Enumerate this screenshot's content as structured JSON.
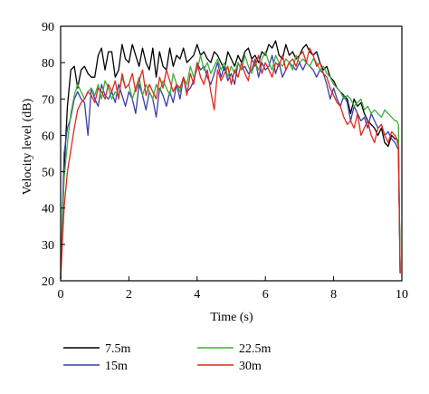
{
  "chart_data": {
    "type": "line",
    "title": "",
    "xlabel": "Time (s)",
    "ylabel": "Velocity level (dB)",
    "xlim": [
      0,
      10
    ],
    "ylim": [
      20,
      90
    ],
    "xticks": [
      0,
      2,
      4,
      6,
      8,
      10
    ],
    "yticks": [
      20,
      30,
      40,
      50,
      60,
      70,
      80,
      90
    ],
    "grid": false,
    "legend_position": "bottom",
    "series": [
      {
        "name": "7.5m",
        "color": "#000000",
        "x": [
          0.0,
          0.1,
          0.2,
          0.3,
          0.4,
          0.5,
          0.6,
          0.7,
          0.8,
          0.9,
          1.0,
          1.1,
          1.2,
          1.3,
          1.4,
          1.5,
          1.6,
          1.7,
          1.8,
          1.9,
          2.0,
          2.1,
          2.2,
          2.3,
          2.4,
          2.5,
          2.6,
          2.7,
          2.8,
          2.9,
          3.0,
          3.1,
          3.2,
          3.3,
          3.4,
          3.5,
          3.6,
          3.7,
          3.8,
          3.9,
          4.0,
          4.1,
          4.2,
          4.3,
          4.4,
          4.5,
          4.6,
          4.7,
          4.8,
          4.9,
          5.0,
          5.1,
          5.2,
          5.3,
          5.4,
          5.5,
          5.6,
          5.7,
          5.8,
          5.9,
          6.0,
          6.1,
          6.2,
          6.3,
          6.4,
          6.5,
          6.6,
          6.7,
          6.8,
          6.9,
          7.0,
          7.1,
          7.2,
          7.3,
          7.4,
          7.5,
          7.6,
          7.7,
          7.8,
          7.9,
          8.0,
          8.1,
          8.2,
          8.3,
          8.4,
          8.5,
          8.6,
          8.7,
          8.8,
          8.9,
          9.0,
          9.1,
          9.2,
          9.3,
          9.4,
          9.5,
          9.6,
          9.7,
          9.8,
          9.85,
          9.9,
          9.95
        ],
        "y": [
          20.5,
          50,
          68,
          78,
          79,
          73,
          78,
          79,
          77,
          76,
          76,
          82,
          84,
          78,
          83,
          83,
          76,
          78,
          85,
          81,
          80,
          85,
          82,
          79,
          84,
          80,
          78,
          84,
          76,
          83,
          79,
          78,
          84,
          79,
          82,
          81,
          84,
          80,
          81,
          82,
          85,
          82,
          83,
          81,
          80,
          83,
          82,
          80,
          78,
          83,
          81,
          79,
          82,
          80,
          83,
          84,
          81,
          82,
          80,
          83,
          82,
          85,
          84,
          86,
          82,
          81,
          85,
          82,
          83,
          81,
          82,
          84,
          85,
          83,
          82,
          83,
          80,
          78,
          79,
          76,
          75,
          73,
          72,
          71,
          70,
          66,
          70,
          68,
          69,
          66,
          64,
          63,
          62,
          60,
          62,
          58,
          57,
          60,
          59,
          59,
          58,
          22
        ]
      },
      {
        "name": "15m",
        "color": "#3a3fa8",
        "x": [
          0.0,
          0.1,
          0.2,
          0.3,
          0.4,
          0.5,
          0.6,
          0.7,
          0.8,
          0.9,
          1.0,
          1.1,
          1.2,
          1.3,
          1.4,
          1.5,
          1.6,
          1.7,
          1.8,
          1.9,
          2.0,
          2.1,
          2.2,
          2.3,
          2.4,
          2.5,
          2.6,
          2.7,
          2.8,
          2.9,
          3.0,
          3.1,
          3.2,
          3.3,
          3.4,
          3.5,
          3.6,
          3.7,
          3.8,
          3.9,
          4.0,
          4.1,
          4.2,
          4.3,
          4.4,
          4.5,
          4.6,
          4.7,
          4.8,
          4.9,
          5.0,
          5.1,
          5.2,
          5.3,
          5.4,
          5.5,
          5.6,
          5.7,
          5.8,
          5.9,
          6.0,
          6.1,
          6.2,
          6.3,
          6.4,
          6.5,
          6.6,
          6.7,
          6.8,
          6.9,
          7.0,
          7.1,
          7.2,
          7.3,
          7.4,
          7.5,
          7.6,
          7.7,
          7.8,
          7.9,
          8.0,
          8.1,
          8.2,
          8.3,
          8.4,
          8.5,
          8.6,
          8.7,
          8.8,
          8.9,
          9.0,
          9.1,
          9.2,
          9.3,
          9.4,
          9.5,
          9.6,
          9.7,
          9.8,
          9.85,
          9.9,
          9.95
        ],
        "y": [
          20.5,
          55,
          62,
          65,
          70,
          72,
          70,
          69,
          60,
          73,
          70,
          68,
          74,
          71,
          70,
          72,
          69,
          74,
          71,
          68,
          72,
          70,
          66,
          74,
          71,
          67,
          72,
          70,
          65,
          73,
          71,
          68,
          72,
          69,
          74,
          70,
          76,
          72,
          73,
          75,
          80,
          78,
          79,
          76,
          74,
          77,
          80,
          76,
          79,
          75,
          77,
          74,
          80,
          78,
          79,
          77,
          78,
          81,
          76,
          80,
          78,
          79,
          82,
          77,
          80,
          76,
          78,
          80,
          79,
          78,
          80,
          78,
          80,
          79,
          78,
          76,
          78,
          77,
          74,
          70,
          73,
          70,
          68,
          71,
          69,
          64,
          68,
          66,
          64,
          65,
          62,
          66,
          64,
          62,
          63,
          60,
          61,
          59,
          58,
          57,
          56,
          23
        ]
      },
      {
        "name": "22.5m",
        "color": "#3fae3f",
        "x": [
          0.0,
          0.1,
          0.2,
          0.3,
          0.4,
          0.5,
          0.6,
          0.7,
          0.8,
          0.9,
          1.0,
          1.1,
          1.2,
          1.3,
          1.4,
          1.5,
          1.6,
          1.7,
          1.8,
          1.9,
          2.0,
          2.1,
          2.2,
          2.3,
          2.4,
          2.5,
          2.6,
          2.7,
          2.8,
          2.9,
          3.0,
          3.1,
          3.2,
          3.3,
          3.4,
          3.5,
          3.6,
          3.7,
          3.8,
          3.9,
          4.0,
          4.1,
          4.2,
          4.3,
          4.4,
          4.5,
          4.6,
          4.7,
          4.8,
          4.9,
          5.0,
          5.1,
          5.2,
          5.3,
          5.4,
          5.5,
          5.6,
          5.7,
          5.8,
          5.9,
          6.0,
          6.1,
          6.2,
          6.3,
          6.4,
          6.5,
          6.6,
          6.7,
          6.8,
          6.9,
          7.0,
          7.1,
          7.2,
          7.3,
          7.4,
          7.5,
          7.6,
          7.7,
          7.8,
          7.9,
          8.0,
          8.1,
          8.2,
          8.3,
          8.4,
          8.5,
          8.6,
          8.7,
          8.8,
          8.9,
          9.0,
          9.1,
          9.2,
          9.3,
          9.4,
          9.5,
          9.6,
          9.7,
          9.8,
          9.85,
          9.9,
          9.95
        ],
        "y": [
          20.5,
          48,
          58,
          66,
          71,
          74,
          72,
          70,
          72,
          73,
          71,
          74,
          70,
          75,
          73,
          70,
          72,
          71,
          76,
          73,
          74,
          70,
          73,
          76,
          71,
          74,
          72,
          70,
          74,
          72,
          75,
          73,
          71,
          77,
          74,
          72,
          76,
          74,
          79,
          76,
          78,
          82,
          78,
          80,
          77,
          79,
          81,
          78,
          80,
          76,
          79,
          77,
          80,
          78,
          82,
          79,
          77,
          80,
          78,
          81,
          83,
          80,
          78,
          82,
          80,
          79,
          81,
          80,
          78,
          82,
          80,
          81,
          80,
          79,
          81,
          80,
          78,
          79,
          77,
          76,
          74,
          73,
          72,
          70,
          71,
          70,
          68,
          69,
          70,
          67,
          68,
          66,
          67,
          66,
          65,
          67,
          66,
          65,
          64,
          64,
          63,
          22
        ]
      },
      {
        "name": "30m",
        "color": "#e0281e",
        "x": [
          0.0,
          0.1,
          0.2,
          0.3,
          0.4,
          0.5,
          0.6,
          0.7,
          0.8,
          0.9,
          1.0,
          1.1,
          1.2,
          1.3,
          1.4,
          1.5,
          1.6,
          1.7,
          1.8,
          1.9,
          2.0,
          2.1,
          2.2,
          2.3,
          2.4,
          2.5,
          2.6,
          2.7,
          2.8,
          2.9,
          3.0,
          3.1,
          3.2,
          3.3,
          3.4,
          3.5,
          3.6,
          3.7,
          3.8,
          3.9,
          4.0,
          4.1,
          4.2,
          4.3,
          4.4,
          4.5,
          4.6,
          4.7,
          4.8,
          4.9,
          5.0,
          5.1,
          5.2,
          5.3,
          5.4,
          5.5,
          5.6,
          5.7,
          5.8,
          5.9,
          6.0,
          6.1,
          6.2,
          6.3,
          6.4,
          6.5,
          6.6,
          6.7,
          6.8,
          6.9,
          7.0,
          7.1,
          7.2,
          7.3,
          7.4,
          7.5,
          7.6,
          7.7,
          7.8,
          7.9,
          8.0,
          8.1,
          8.2,
          8.3,
          8.4,
          8.5,
          8.6,
          8.7,
          8.8,
          8.9,
          9.0,
          9.1,
          9.2,
          9.3,
          9.4,
          9.5,
          9.6,
          9.7,
          9.8,
          9.85,
          9.9,
          9.95
        ],
        "y": [
          20.5,
          40,
          50,
          56,
          62,
          67,
          69,
          70,
          72,
          71,
          69,
          73,
          72,
          70,
          74,
          72,
          75,
          70,
          77,
          73,
          74,
          77,
          72,
          75,
          78,
          71,
          74,
          72,
          70,
          76,
          73,
          78,
          75,
          72,
          74,
          73,
          76,
          71,
          77,
          74,
          80,
          76,
          74,
          78,
          72,
          67,
          78,
          75,
          77,
          79,
          74,
          78,
          76,
          80,
          77,
          75,
          81,
          79,
          82,
          77,
          80,
          78,
          76,
          80,
          79,
          82,
          78,
          80,
          81,
          79,
          82,
          83,
          80,
          84,
          82,
          79,
          80,
          77,
          76,
          73,
          71,
          69,
          68,
          65,
          63,
          64,
          62,
          66,
          60,
          62,
          64,
          60,
          58,
          62,
          63,
          60,
          58,
          61,
          60,
          59,
          57,
          22
        ]
      }
    ]
  }
}
